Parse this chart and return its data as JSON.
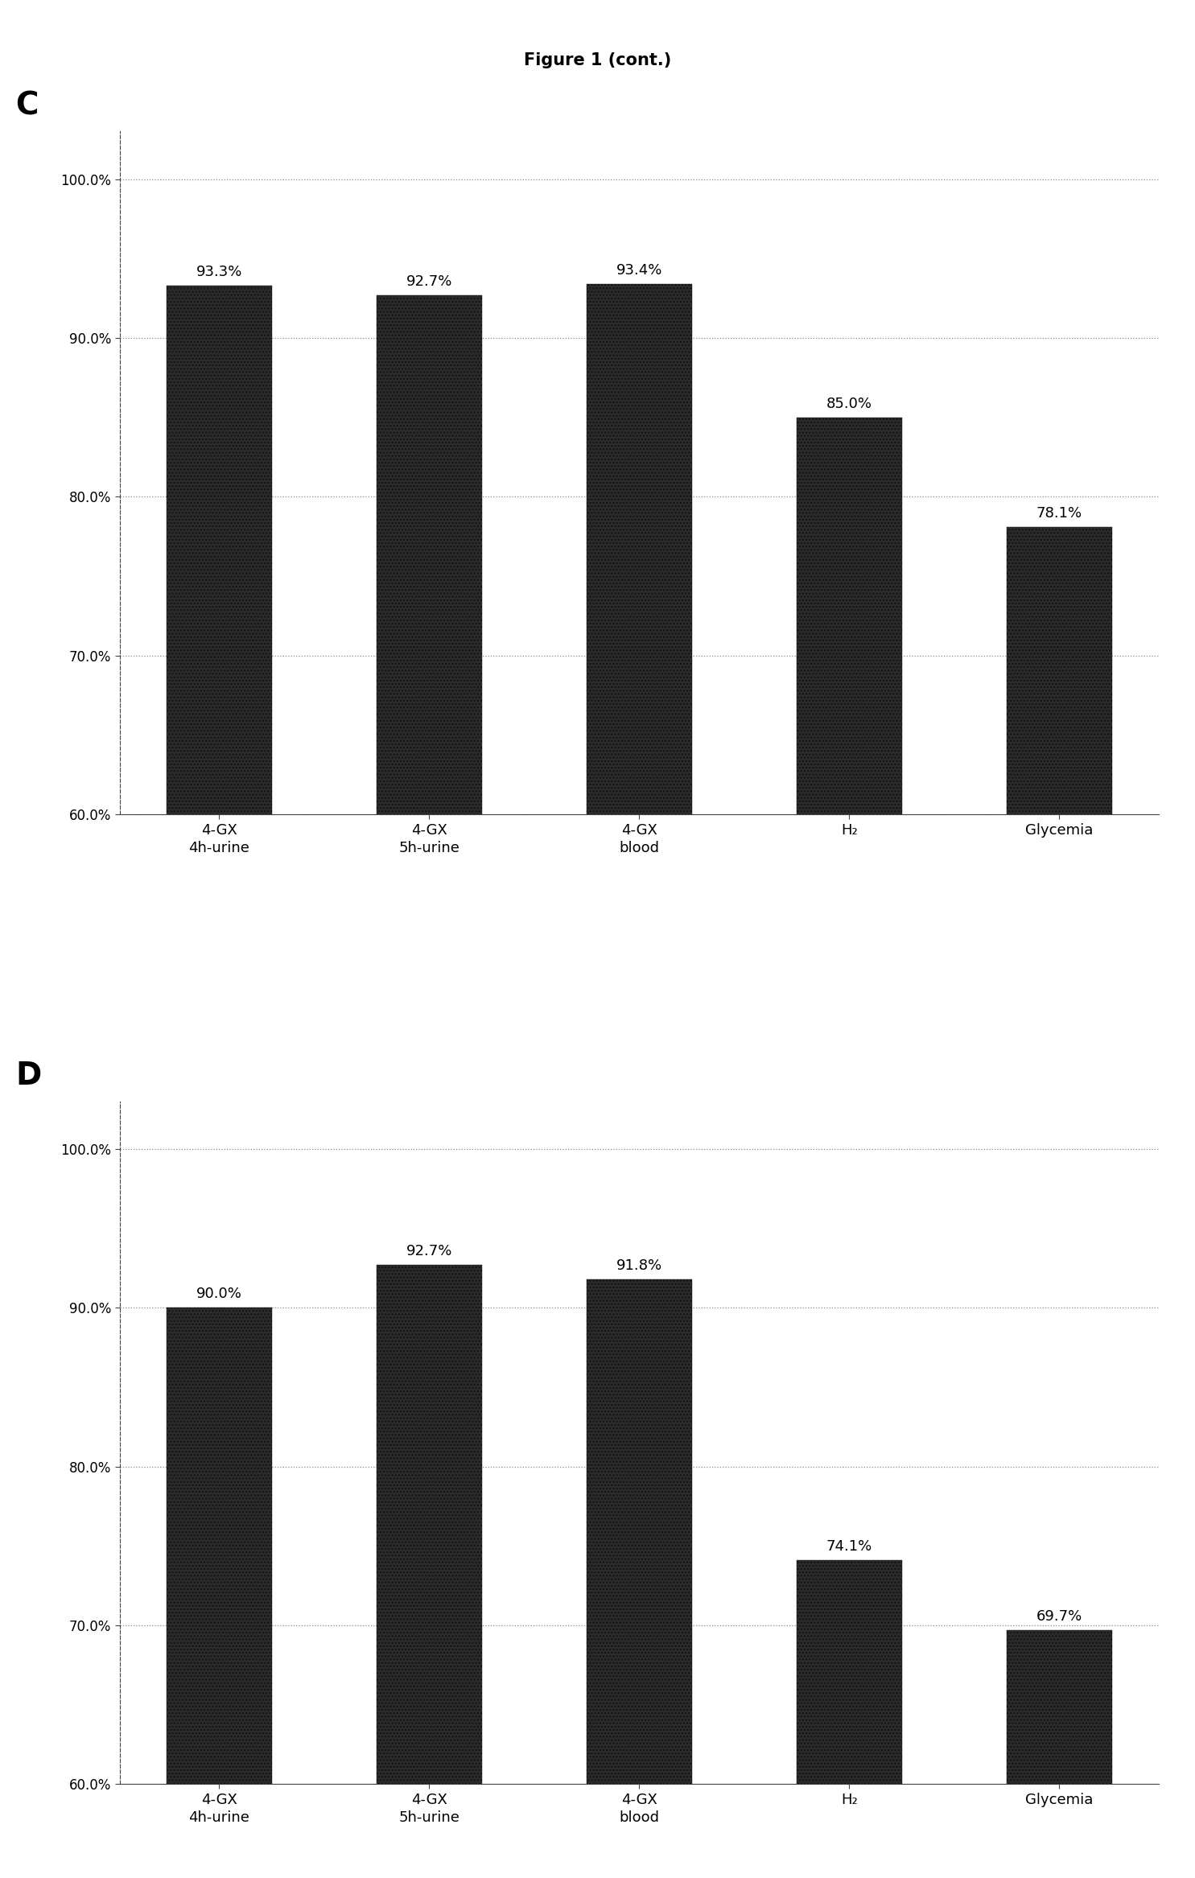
{
  "title": "Figure 1 (cont.)",
  "title_fontsize": 15,
  "title_fontweight": "bold",
  "background_color": "#ffffff",
  "charts": [
    {
      "label": "C",
      "categories": [
        "4-GX\n4h-urine",
        "4-GX\n5h-urine",
        "4-GX\nblood",
        "H₂",
        "Glycemia"
      ],
      "values": [
        93.3,
        92.7,
        93.4,
        85.0,
        78.1
      ],
      "bar_labels": [
        "93.3%",
        "92.7%",
        "93.4%",
        "85.0%",
        "78.1%"
      ],
      "ylim": [
        60,
        103
      ],
      "yticks": [
        60.0,
        70.0,
        80.0,
        90.0,
        100.0
      ],
      "ytick_labels": [
        "60.0%",
        "70.0%",
        "80.0%",
        "90.0%",
        "100.0%"
      ]
    },
    {
      "label": "D",
      "categories": [
        "4-GX\n4h-urine",
        "4-GX\n5h-urine",
        "4-GX\nblood",
        "H₂",
        "Glycemia"
      ],
      "values": [
        90.0,
        92.7,
        91.8,
        74.1,
        69.7
      ],
      "bar_labels": [
        "90.0%",
        "92.7%",
        "91.8%",
        "74.1%",
        "69.7%"
      ],
      "ylim": [
        60,
        103
      ],
      "yticks": [
        60.0,
        70.0,
        80.0,
        90.0,
        100.0
      ],
      "ytick_labels": [
        "60.0%",
        "70.0%",
        "80.0%",
        "90.0%",
        "100.0%"
      ]
    }
  ],
  "bar_color": "#2b2b2b",
  "bar_hatch": "....",
  "bar_width": 0.5,
  "label_fontsize": 28,
  "bar_label_fontsize": 13,
  "tick_fontsize": 12,
  "xtick_fontsize": 13,
  "grid_color": "#888888",
  "grid_linestyle": ":"
}
